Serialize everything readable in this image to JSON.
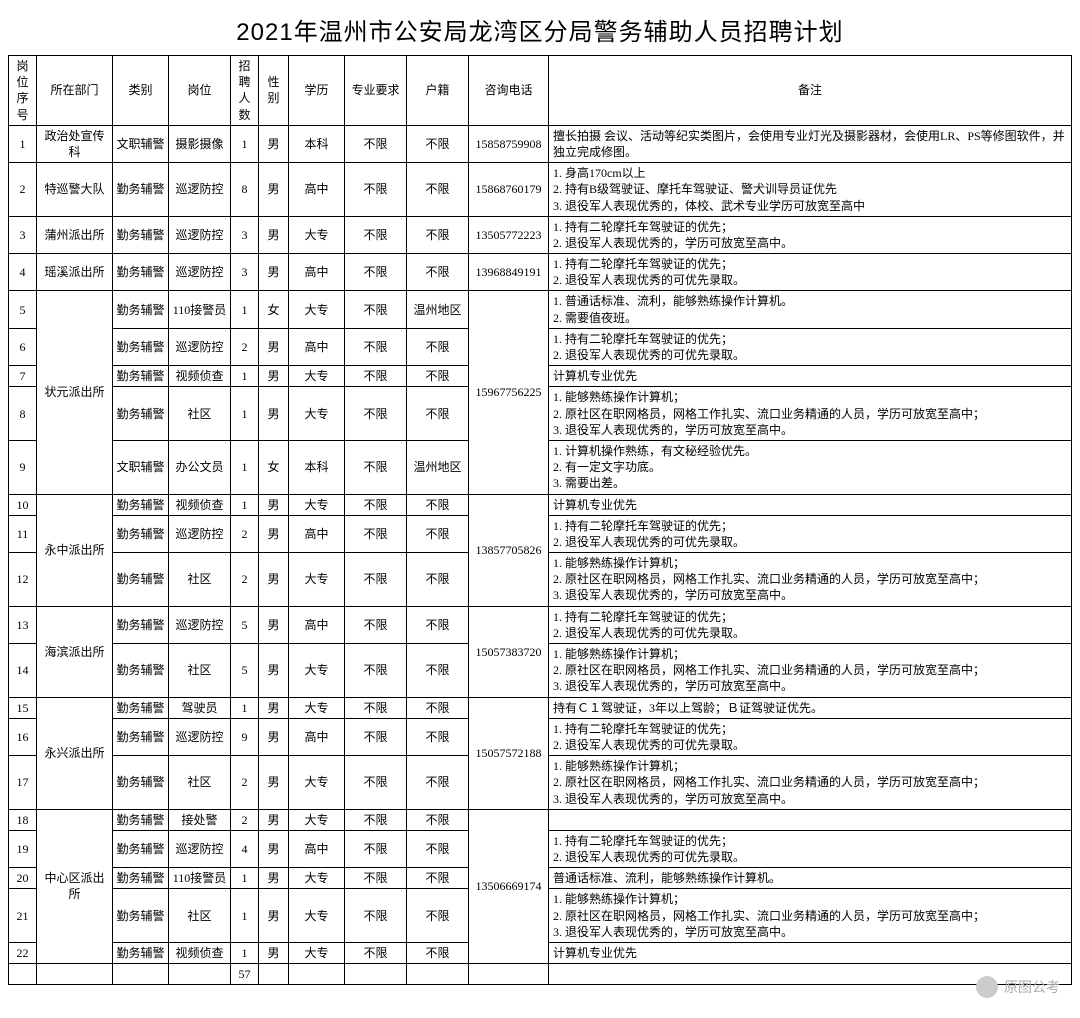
{
  "title": "2021年温州市公安局龙湾区分局警务辅助人员招聘计划",
  "columns": [
    "岗位序号",
    "所在部门",
    "类别",
    "岗位",
    "招聘人数",
    "性别",
    "学历",
    "专业要求",
    "户籍",
    "咨询电话",
    "备注"
  ],
  "rows": [
    {
      "seq": "1",
      "dept": "政治处宣传科",
      "cat": "文职辅警",
      "post": "摄影摄像",
      "num": "1",
      "sex": "男",
      "edu": "本科",
      "major": "不限",
      "huji": "不限",
      "tel": "15858759908",
      "note": "擅长拍摄 会议、活动等纪实类图片，会使用专业灯光及摄影器材，会使用LR、PS等修图软件，并独立完成修图。"
    },
    {
      "seq": "2",
      "dept": "特巡警大队",
      "cat": "勤务辅警",
      "post": "巡逻防控",
      "num": "8",
      "sex": "男",
      "edu": "高中",
      "major": "不限",
      "huji": "不限",
      "tel": "15868760179",
      "note": "1. 身高170cm以上\n2. 持有B级驾驶证、摩托车驾驶证、警犬训导员证优先\n3. 退役军人表现优秀的，体校、武术专业学历可放宽至高中"
    },
    {
      "seq": "3",
      "dept": "蒲州派出所",
      "cat": "勤务辅警",
      "post": "巡逻防控",
      "num": "3",
      "sex": "男",
      "edu": "大专",
      "major": "不限",
      "huji": "不限",
      "tel": "13505772223",
      "note": "1. 持有二轮摩托车驾驶证的优先；\n2. 退役军人表现优秀的，学历可放宽至高中。"
    },
    {
      "seq": "4",
      "dept": "瑶溪派出所",
      "cat": "勤务辅警",
      "post": "巡逻防控",
      "num": "3",
      "sex": "男",
      "edu": "高中",
      "major": "不限",
      "huji": "不限",
      "tel": "13968849191",
      "note": "1. 持有二轮摩托车驾驶证的优先；\n2. 退役军人表现优秀的可优先录取。"
    },
    {
      "seq": "5",
      "dept": "状元派出所",
      "cat": "勤务辅警",
      "post": "110接警员",
      "num": "1",
      "sex": "女",
      "edu": "大专",
      "major": "不限",
      "huji": "温州地区",
      "tel": "15967756225",
      "note": "1. 普通话标准、流利，能够熟练操作计算机。\n2. 需要值夜班。"
    },
    {
      "seq": "6",
      "cat": "勤务辅警",
      "post": "巡逻防控",
      "num": "2",
      "sex": "男",
      "edu": "高中",
      "major": "不限",
      "huji": "不限",
      "note": "1. 持有二轮摩托车驾驶证的优先；\n2. 退役军人表现优秀的可优先录取。"
    },
    {
      "seq": "7",
      "cat": "勤务辅警",
      "post": "视频侦查",
      "num": "1",
      "sex": "男",
      "edu": "大专",
      "major": "不限",
      "huji": "不限",
      "note": "计算机专业优先"
    },
    {
      "seq": "8",
      "cat": "勤务辅警",
      "post": "社区",
      "num": "1",
      "sex": "男",
      "edu": "大专",
      "major": "不限",
      "huji": "不限",
      "note": "1. 能够熟练操作计算机；\n2. 原社区在职网格员，网格工作扎实、流口业务精通的人员，学历可放宽至高中；\n3. 退役军人表现优秀的，学历可放宽至高中。"
    },
    {
      "seq": "9",
      "cat": "文职辅警",
      "post": "办公文员",
      "num": "1",
      "sex": "女",
      "edu": "本科",
      "major": "不限",
      "huji": "温州地区",
      "note": "1. 计算机操作熟练，有文秘经验优先。\n2. 有一定文字功底。\n3. 需要出差。"
    },
    {
      "seq": "10",
      "dept": "永中派出所",
      "cat": "勤务辅警",
      "post": "视频侦查",
      "num": "1",
      "sex": "男",
      "edu": "大专",
      "major": "不限",
      "huji": "不限",
      "tel": "13857705826",
      "note": "计算机专业优先"
    },
    {
      "seq": "11",
      "cat": "勤务辅警",
      "post": "巡逻防控",
      "num": "2",
      "sex": "男",
      "edu": "高中",
      "major": "不限",
      "huji": "不限",
      "note": "1. 持有二轮摩托车驾驶证的优先；\n2. 退役军人表现优秀的可优先录取。"
    },
    {
      "seq": "12",
      "cat": "勤务辅警",
      "post": "社区",
      "num": "2",
      "sex": "男",
      "edu": "大专",
      "major": "不限",
      "huji": "不限",
      "note": "1. 能够熟练操作计算机；\n2. 原社区在职网格员，网格工作扎实、流口业务精通的人员，学历可放宽至高中；\n3. 退役军人表现优秀的，学历可放宽至高中。"
    },
    {
      "seq": "13",
      "dept": "海滨派出所",
      "cat": "勤务辅警",
      "post": "巡逻防控",
      "num": "5",
      "sex": "男",
      "edu": "高中",
      "major": "不限",
      "huji": "不限",
      "tel": "15057383720",
      "note": "1. 持有二轮摩托车驾驶证的优先；\n2. 退役军人表现优秀的可优先录取。"
    },
    {
      "seq": "14",
      "cat": "勤务辅警",
      "post": "社区",
      "num": "5",
      "sex": "男",
      "edu": "大专",
      "major": "不限",
      "huji": "不限",
      "note": "1. 能够熟练操作计算机；\n2. 原社区在职网格员，网格工作扎实、流口业务精通的人员，学历可放宽至高中；\n3. 退役军人表现优秀的，学历可放宽至高中。"
    },
    {
      "seq": "15",
      "dept": "永兴派出所",
      "cat": "勤务辅警",
      "post": "驾驶员",
      "num": "1",
      "sex": "男",
      "edu": "大专",
      "major": "不限",
      "huji": "不限",
      "tel": "15057572188",
      "note": "持有Ｃ１驾驶证，3年以上驾龄；Ｂ证驾驶证优先。"
    },
    {
      "seq": "16",
      "cat": "勤务辅警",
      "post": "巡逻防控",
      "num": "9",
      "sex": "男",
      "edu": "高中",
      "major": "不限",
      "huji": "不限",
      "note": "1. 持有二轮摩托车驾驶证的优先；\n2. 退役军人表现优秀的可优先录取。"
    },
    {
      "seq": "17",
      "cat": "勤务辅警",
      "post": "社区",
      "num": "2",
      "sex": "男",
      "edu": "大专",
      "major": "不限",
      "huji": "不限",
      "note": "1. 能够熟练操作计算机；\n2. 原社区在职网格员，网格工作扎实、流口业务精通的人员，学历可放宽至高中；\n3. 退役军人表现优秀的，学历可放宽至高中。"
    },
    {
      "seq": "18",
      "dept": "中心区派出所",
      "cat": "勤务辅警",
      "post": "接处警",
      "num": "2",
      "sex": "男",
      "edu": "大专",
      "major": "不限",
      "huji": "不限",
      "tel": "13506669174",
      "note": ""
    },
    {
      "seq": "19",
      "cat": "勤务辅警",
      "post": "巡逻防控",
      "num": "4",
      "sex": "男",
      "edu": "高中",
      "major": "不限",
      "huji": "不限",
      "note": "1. 持有二轮摩托车驾驶证的优先；\n2. 退役军人表现优秀的可优先录取。"
    },
    {
      "seq": "20",
      "cat": "勤务辅警",
      "post": "110接警员",
      "num": "1",
      "sex": "男",
      "edu": "大专",
      "major": "不限",
      "huji": "不限",
      "note": "普通话标准、流利，能够熟练操作计算机。"
    },
    {
      "seq": "21",
      "cat": "勤务辅警",
      "post": "社区",
      "num": "1",
      "sex": "男",
      "edu": "大专",
      "major": "不限",
      "huji": "不限",
      "note": "1. 能够熟练操作计算机；\n2. 原社区在职网格员，网格工作扎实、流口业务精通的人员，学历可放宽至高中；\n3. 退役军人表现优秀的，学历可放宽至高中。"
    },
    {
      "seq": "22",
      "cat": "勤务辅警",
      "post": "视频侦查",
      "num": "1",
      "sex": "男",
      "edu": "大专",
      "major": "不限",
      "huji": "不限",
      "note": "计算机专业优先"
    }
  ],
  "total": "57",
  "watermark": "原图公考",
  "layout": {
    "deptRowspans": {
      "1": 1,
      "2": 1,
      "3": 1,
      "4": 1,
      "5": 5,
      "10": 3,
      "13": 2,
      "15": 3,
      "18": 5
    },
    "telRowspans": {
      "1": 1,
      "2": 1,
      "3": 1,
      "4": 1,
      "5": 5,
      "10": 3,
      "13": 2,
      "15": 3,
      "18": 5
    }
  },
  "style": {
    "title_font_size": 24,
    "body_font_size": 12,
    "border_color": "#000000",
    "background": "#ffffff",
    "text_color": "#000000"
  }
}
